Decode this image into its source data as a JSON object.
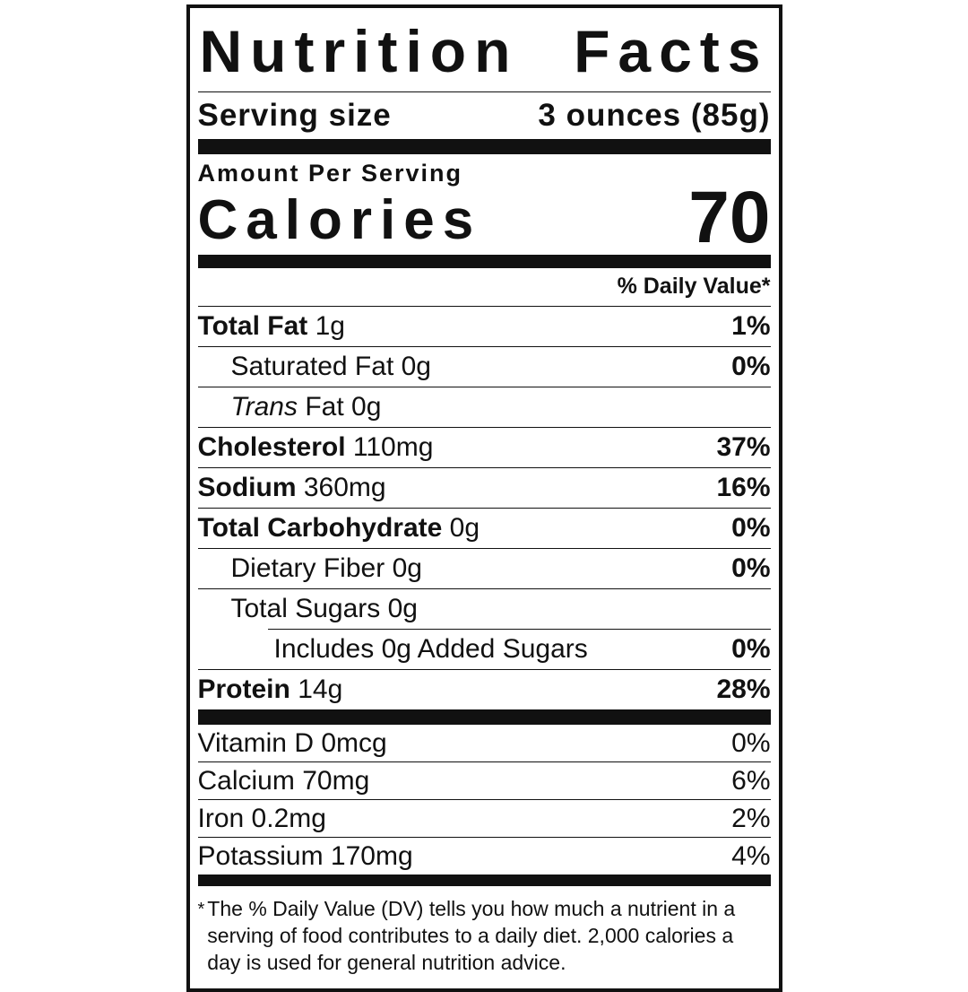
{
  "colors": {
    "ink": "#111111",
    "paper": "#ffffff"
  },
  "title": {
    "word1": "Nutrition",
    "word2": "Facts"
  },
  "serving": {
    "label": "Serving size",
    "value": "3 ounces (85g)"
  },
  "calories_section": {
    "heading": "Amount Per Serving",
    "label": "Calories",
    "value": "70"
  },
  "daily_value_header": "% Daily Value*",
  "nutrients": [
    {
      "name": "Total Fat",
      "amount": "1g",
      "dv": "1%"
    },
    {
      "name": "Saturated Fat",
      "amount": "0g",
      "dv": "0%"
    },
    {
      "name_italic": "Trans",
      "name": "Fat",
      "amount": "0g",
      "dv": ""
    },
    {
      "name": "Cholesterol",
      "amount": "110mg",
      "dv": "37%"
    },
    {
      "name": "Sodium",
      "amount": "360mg",
      "dv": "16%"
    },
    {
      "name": "Total Carbohydrate",
      "amount": "0g",
      "dv": "0%"
    },
    {
      "name": "Dietary Fiber",
      "amount": "0g",
      "dv": "0%"
    },
    {
      "name": "Total Sugars",
      "amount": "0g",
      "dv": ""
    },
    {
      "name": "Includes 0g Added Sugars",
      "amount": "",
      "dv": "0%"
    },
    {
      "name": "Protein",
      "amount": "14g",
      "dv": "28%"
    }
  ],
  "micronutrients": [
    {
      "name": "Vitamin D",
      "amount": "0mcg",
      "dv": "0%"
    },
    {
      "name": "Calcium",
      "amount": "70mg",
      "dv": "6%"
    },
    {
      "name": "Iron",
      "amount": "0.2mg",
      "dv": "2%"
    },
    {
      "name": "Potassium",
      "amount": "170mg",
      "dv": "4%"
    }
  ],
  "footnote": {
    "marker": "*",
    "lines": [
      "The % Daily Value (DV) tells you how much a nutrient in a",
      "serving of food contributes to a daily diet. 2,000 calories a",
      "day is used for general nutrition advice."
    ]
  }
}
